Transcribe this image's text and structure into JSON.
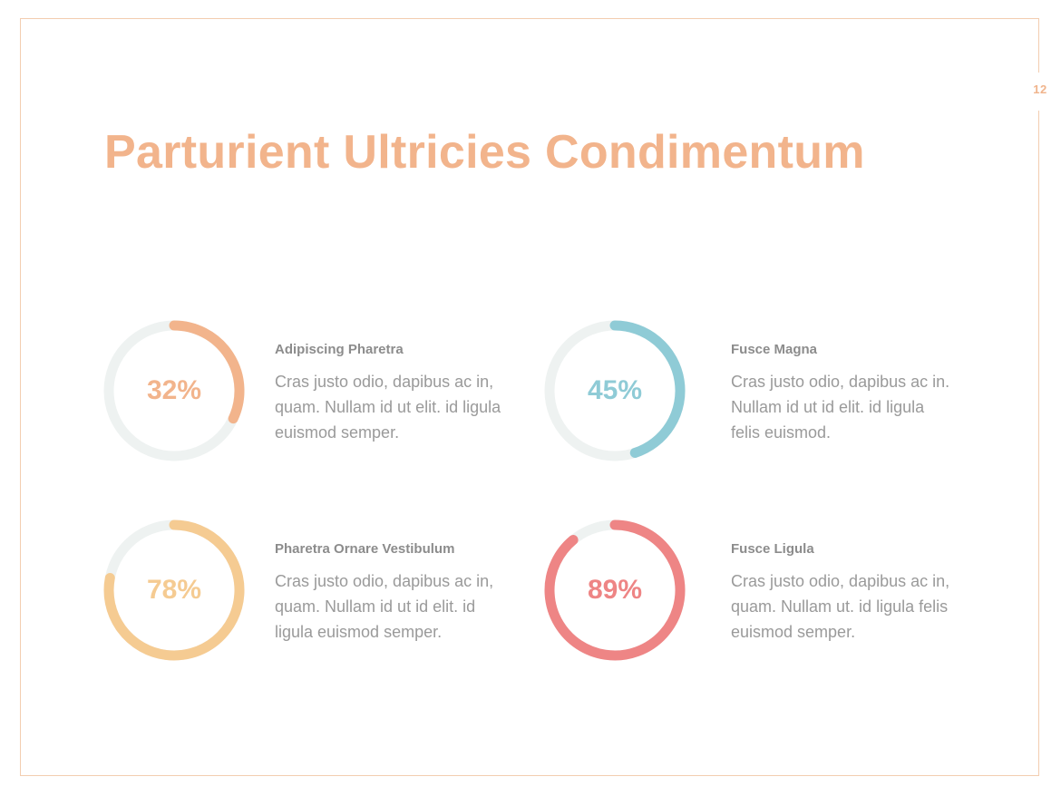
{
  "page_number": "12",
  "title": "Parturient Ultricies Condimentum",
  "colors": {
    "frame": "#f3cdb0",
    "track": "#eef2f1",
    "orange": "#f2b48c",
    "blue": "#8fcbd6",
    "yellow": "#f5cb92",
    "red": "#ee8585"
  },
  "chart_data": {
    "type": "pie",
    "variant": "progress-ring",
    "items": [
      {
        "label": "32%",
        "value": 32,
        "color": "#f2b48c",
        "heading": "Adipiscing Pharetra",
        "text": "Cras justo odio, dapibus ac in, quam. Nullam id ut elit. id ligula euismod semper."
      },
      {
        "label": "45%",
        "value": 45,
        "color": "#8fcbd6",
        "heading": "Fusce Magna",
        "text": "Cras justo odio, dapibus ac in. Nullam id ut id elit. id ligula felis euismod."
      },
      {
        "label": "78%",
        "value": 78,
        "color": "#f5cb92",
        "heading": "Pharetra Ornare Vestibulum",
        "text": "Cras justo odio, dapibus ac in, quam. Nullam id ut id elit. id ligula euismod semper."
      },
      {
        "label": "89%",
        "value": 89,
        "color": "#ee8585",
        "heading": "Fusce Ligula",
        "text": "Cras justo odio, dapibus ac in, quam. Nullam ut. id ligula felis euismod semper."
      }
    ]
  }
}
